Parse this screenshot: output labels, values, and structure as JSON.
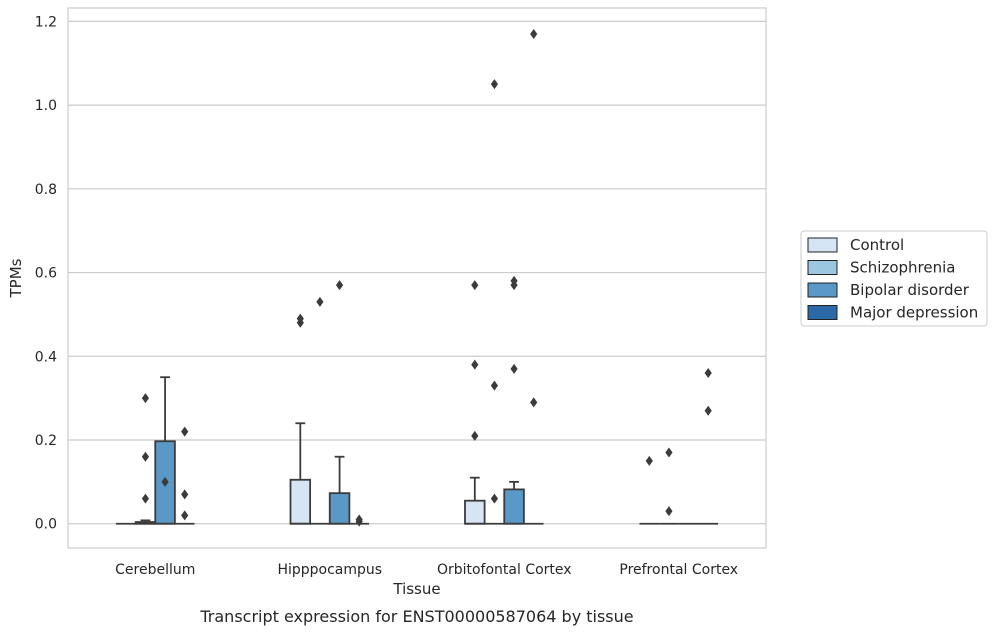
{
  "chart_data": {
    "type": "box",
    "xlabel": "Tissue",
    "ylabel": "TPMs",
    "caption": "Transcript expression for ENST00000587064 by tissue",
    "ylim": [
      -0.058,
      1.232
    ],
    "yticks": [
      0.0,
      0.2,
      0.4,
      0.6,
      0.8,
      1.0,
      1.2
    ],
    "ytick_labels": [
      "0.0",
      "0.2",
      "0.4",
      "0.6",
      "0.8",
      "1.0",
      "1.2"
    ],
    "grid": "horizontal",
    "legend_position": "right",
    "categories": [
      "Cerebellum",
      "Hipppocampus",
      "Orbitofontal Cortex",
      "Prefrontal Cortex"
    ],
    "series": [
      {
        "name": "Control",
        "color": "#d6e5f4",
        "boxes": [
          {
            "q1": 0.0,
            "median": 0.0,
            "q3": 0.0,
            "whisker_low": 0.0,
            "whisker_high": 0.0,
            "outliers": []
          },
          {
            "q1": 0.0,
            "median": 0.0,
            "q3": 0.105,
            "whisker_low": 0.0,
            "whisker_high": 0.24,
            "outliers": [
              0.48,
              0.49
            ]
          },
          {
            "q1": 0.0,
            "median": 0.0,
            "q3": 0.055,
            "whisker_low": 0.0,
            "whisker_high": 0.11,
            "outliers": [
              0.21,
              0.38,
              0.57
            ]
          },
          {
            "q1": 0.0,
            "median": 0.0,
            "q3": 0.0,
            "whisker_low": 0.0,
            "whisker_high": 0.0,
            "outliers": [
              0.15
            ]
          }
        ]
      },
      {
        "name": "Schizophrenia",
        "color": "#9bc8e0",
        "boxes": [
          {
            "q1": 0.0,
            "median": 0.0,
            "q3": 0.004,
            "whisker_low": 0.0,
            "whisker_high": 0.008,
            "outliers": [
              0.06,
              0.16,
              0.3
            ]
          },
          {
            "q1": 0.0,
            "median": 0.0,
            "q3": 0.0,
            "whisker_low": 0.0,
            "whisker_high": 0.0,
            "outliers": [
              0.53
            ]
          },
          {
            "q1": 0.0,
            "median": 0.0,
            "q3": 0.0,
            "whisker_low": 0.0,
            "whisker_high": 0.0,
            "outliers": [
              0.06,
              0.33,
              1.05
            ]
          },
          {
            "q1": 0.0,
            "median": 0.0,
            "q3": 0.0,
            "whisker_low": 0.0,
            "whisker_high": 0.0,
            "outliers": [
              0.03,
              0.17
            ]
          }
        ]
      },
      {
        "name": "Bipolar disorder",
        "color": "#5a98c7",
        "boxes": [
          {
            "q1": 0.0,
            "median": 0.0,
            "q3": 0.197,
            "whisker_low": 0.0,
            "whisker_high": 0.35,
            "outliers": [
              0.1
            ]
          },
          {
            "q1": 0.0,
            "median": 0.0,
            "q3": 0.073,
            "whisker_low": 0.0,
            "whisker_high": 0.16,
            "outliers": [
              0.57
            ]
          },
          {
            "q1": 0.0,
            "median": 0.0,
            "q3": 0.082,
            "whisker_low": 0.0,
            "whisker_high": 0.1,
            "outliers": [
              0.37,
              0.57,
              0.58
            ]
          },
          {
            "q1": 0.0,
            "median": 0.0,
            "q3": 0.0,
            "whisker_low": 0.0,
            "whisker_high": 0.0,
            "outliers": []
          }
        ]
      },
      {
        "name": "Major depression",
        "color": "#2b6aa6",
        "boxes": [
          {
            "q1": 0.0,
            "median": 0.0,
            "q3": 0.0,
            "whisker_low": 0.0,
            "whisker_high": 0.0,
            "outliers": [
              0.02,
              0.07,
              0.22
            ]
          },
          {
            "q1": 0.0,
            "median": 0.0,
            "q3": 0.0,
            "whisker_low": 0.0,
            "whisker_high": 0.0,
            "outliers": [
              0.005,
              0.01
            ]
          },
          {
            "q1": 0.0,
            "median": 0.0,
            "q3": 0.0,
            "whisker_low": 0.0,
            "whisker_high": 0.0,
            "outliers": [
              0.29,
              1.17
            ]
          },
          {
            "q1": 0.0,
            "median": 0.0,
            "q3": 0.0,
            "whisker_low": 0.0,
            "whisker_high": 0.0,
            "outliers": [
              0.27,
              0.36
            ]
          }
        ]
      }
    ],
    "style": {
      "line_color": "#3b3b3b",
      "grid_color": "#cccccc",
      "frame_color": "#cccccc"
    }
  }
}
